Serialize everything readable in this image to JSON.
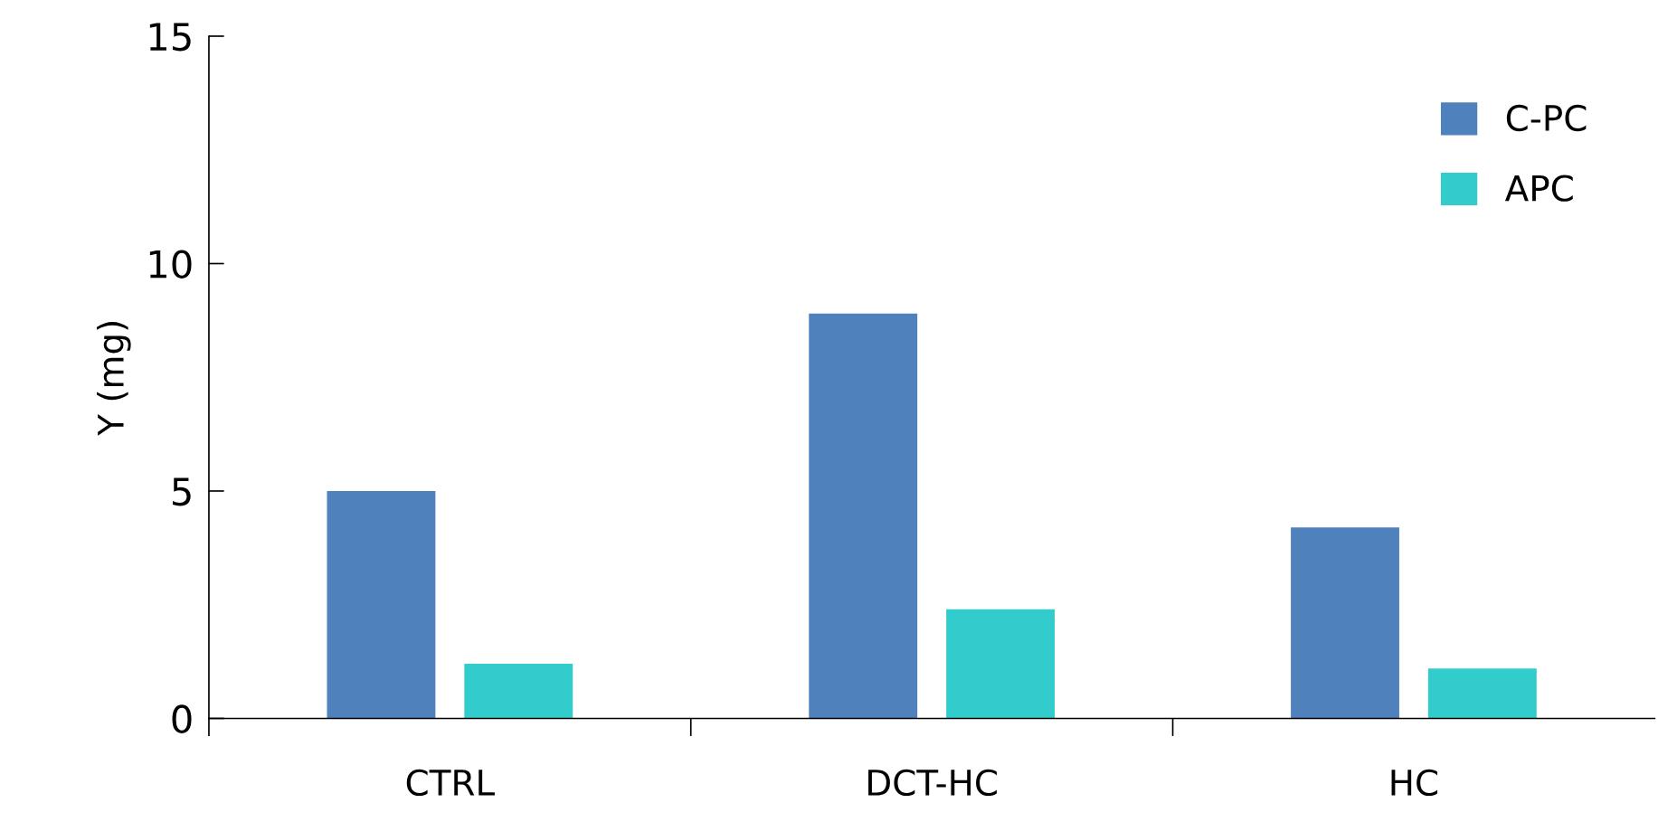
{
  "chart_data": {
    "type": "bar",
    "ylabel": "Y (mg)",
    "categories": [
      "CTRL",
      "DCT-HC",
      "HC"
    ],
    "series": [
      {
        "name": "C-PC",
        "color": "#4f81bd",
        "values": [
          5.0,
          8.9,
          4.2
        ]
      },
      {
        "name": "APC",
        "color": "#33cccc",
        "values": [
          1.2,
          2.4,
          1.1
        ]
      }
    ],
    "ylim": [
      0,
      15
    ],
    "yticks": [
      0,
      5,
      10,
      15
    ],
    "grid": false,
    "legend": "top right"
  }
}
